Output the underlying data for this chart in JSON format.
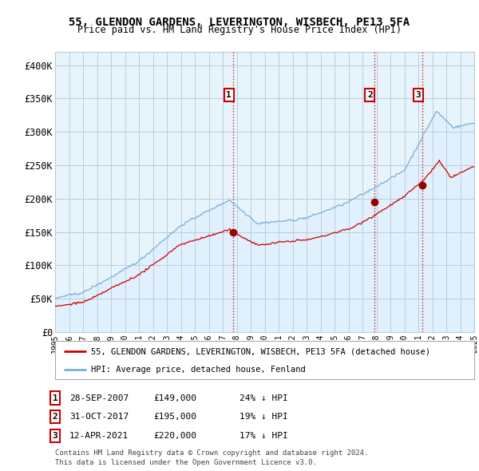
{
  "title": "55, GLENDON GARDENS, LEVERINGTON, WISBECH, PE13 5FA",
  "subtitle": "Price paid vs. HM Land Registry's House Price Index (HPI)",
  "ylabel_ticks": [
    "£0",
    "£50K",
    "£100K",
    "£150K",
    "£200K",
    "£250K",
    "£300K",
    "£350K",
    "£400K"
  ],
  "ytick_values": [
    0,
    50000,
    100000,
    150000,
    200000,
    250000,
    300000,
    350000,
    400000
  ],
  "ylim": [
    0,
    420000
  ],
  "sale_year_nums": [
    2007.75,
    2017.833,
    2021.29
  ],
  "sale_prices": [
    149000,
    195000,
    220000
  ],
  "sale_labels": [
    "1",
    "2",
    "3"
  ],
  "legend_house": "55, GLENDON GARDENS, LEVERINGTON, WISBECH, PE13 5FA (detached house)",
  "legend_hpi": "HPI: Average price, detached house, Fenland",
  "table_rows": [
    [
      "1",
      "28-SEP-2007",
      "£149,000",
      "24% ↓ HPI"
    ],
    [
      "2",
      "31-OCT-2017",
      "£195,000",
      "19% ↓ HPI"
    ],
    [
      "3",
      "12-APR-2021",
      "£220,000",
      "17% ↓ HPI"
    ]
  ],
  "footnote1": "Contains HM Land Registry data © Crown copyright and database right 2024.",
  "footnote2": "This data is licensed under the Open Government Licence v3.0.",
  "house_color": "#cc0000",
  "hpi_color": "#7ab0d4",
  "hpi_fill_color": "#ddeeff",
  "background_color": "#ffffff",
  "chart_bg_color": "#e8f4fc",
  "grid_color": "#bbccdd",
  "sale_marker_color": "#990000",
  "dashed_line_color": "#cc0000",
  "x_start_year": 1995,
  "x_end_year": 2025,
  "label_box_color": "#cc0000"
}
